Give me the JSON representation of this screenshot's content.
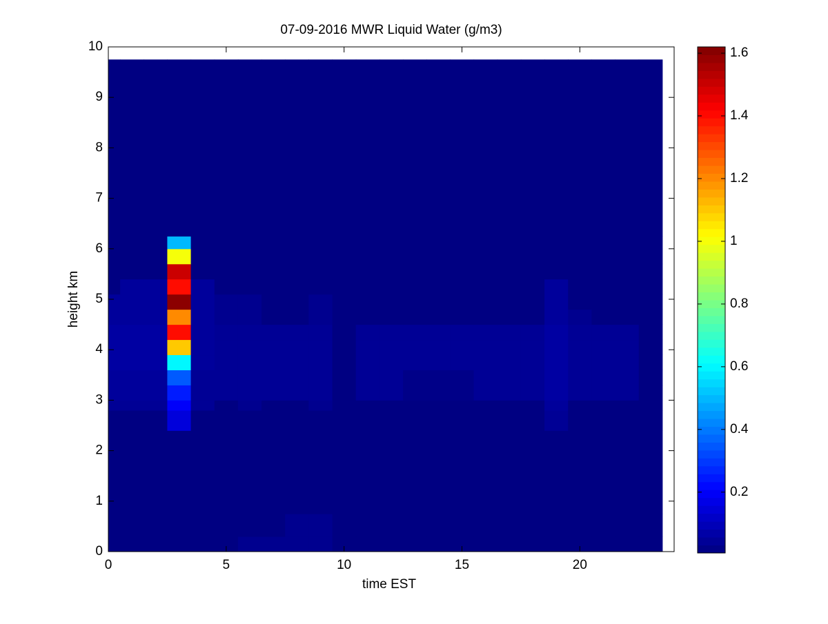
{
  "chart_data": {
    "type": "heatmap",
    "title": "07-09-2016 MWR Liquid Water (g/m3)",
    "xlabel": "time EST",
    "ylabel": "height km",
    "xlim": [
      0,
      24
    ],
    "ylim": [
      0,
      10
    ],
    "xticks": [
      0,
      5,
      10,
      15,
      20
    ],
    "yticks": [
      0,
      1,
      2,
      3,
      4,
      5,
      6,
      7,
      8,
      9,
      10
    ],
    "x_edges": [
      0,
      0.5,
      1.5,
      2.5,
      3.5,
      4.5,
      5.5,
      6.5,
      7.5,
      8.5,
      9.5,
      10.5,
      11.5,
      12.5,
      13.5,
      14.5,
      15.5,
      16.5,
      17.5,
      18.5,
      19.5,
      20.5,
      21.5,
      22.5,
      23.5
    ],
    "y_edges": [
      0,
      0.3,
      0.75,
      2.4,
      2.8,
      3.0,
      3.3,
      3.6,
      3.9,
      4.2,
      4.5,
      4.8,
      5.1,
      5.4,
      5.7,
      6.0,
      6.25,
      9.75
    ],
    "values": [
      [
        0.01,
        0.01,
        0.01,
        0.01,
        0.01,
        0.01,
        0.03,
        0.03,
        0.03,
        0.03,
        0.01,
        0.01,
        0.01,
        0.01,
        0.01,
        0.01,
        0.01,
        0.01,
        0.01,
        0.01,
        0.01,
        0.01,
        0.01,
        0.01
      ],
      [
        0.01,
        0.01,
        0.01,
        0.01,
        0.01,
        0.01,
        0.01,
        0.01,
        0.03,
        0.03,
        0.01,
        0.01,
        0.01,
        0.01,
        0.01,
        0.01,
        0.01,
        0.01,
        0.01,
        0.01,
        0.01,
        0.01,
        0.01,
        0.01
      ],
      [
        0.01,
        0.01,
        0.01,
        0.01,
        0.01,
        0.01,
        0.01,
        0.01,
        0.01,
        0.01,
        0.01,
        0.01,
        0.01,
        0.01,
        0.01,
        0.01,
        0.01,
        0.01,
        0.01,
        0.01,
        0.01,
        0.01,
        0.01,
        0.01
      ],
      [
        0.01,
        0.01,
        0.01,
        0.15,
        0.01,
        0.01,
        0.01,
        0.01,
        0.01,
        0.01,
        0.01,
        0.01,
        0.01,
        0.01,
        0.01,
        0.01,
        0.01,
        0.01,
        0.01,
        0.04,
        0.01,
        0.01,
        0.01,
        0.01
      ],
      [
        0.04,
        0.04,
        0.04,
        0.2,
        0.04,
        0.01,
        0.03,
        0.01,
        0.01,
        0.03,
        0.01,
        0.01,
        0.01,
        0.01,
        0.01,
        0.01,
        0.01,
        0.01,
        0.01,
        0.05,
        0.01,
        0.01,
        0.01,
        0.01
      ],
      [
        0.05,
        0.05,
        0.05,
        0.25,
        0.04,
        0.04,
        0.04,
        0.04,
        0.04,
        0.04,
        0.01,
        0.04,
        0.04,
        0.02,
        0.02,
        0.02,
        0.04,
        0.04,
        0.04,
        0.06,
        0.04,
        0.04,
        0.04,
        0.01
      ],
      [
        0.05,
        0.05,
        0.05,
        0.35,
        0.04,
        0.04,
        0.04,
        0.04,
        0.04,
        0.04,
        0.01,
        0.04,
        0.04,
        0.02,
        0.02,
        0.02,
        0.04,
        0.04,
        0.04,
        0.06,
        0.04,
        0.04,
        0.04,
        0.01
      ],
      [
        0.06,
        0.06,
        0.06,
        0.6,
        0.05,
        0.04,
        0.04,
        0.04,
        0.04,
        0.04,
        0.01,
        0.04,
        0.04,
        0.04,
        0.04,
        0.04,
        0.04,
        0.04,
        0.04,
        0.06,
        0.04,
        0.04,
        0.04,
        0.01
      ],
      [
        0.06,
        0.06,
        0.06,
        1.1,
        0.05,
        0.04,
        0.04,
        0.04,
        0.04,
        0.04,
        0.01,
        0.04,
        0.04,
        0.04,
        0.04,
        0.04,
        0.04,
        0.04,
        0.04,
        0.06,
        0.04,
        0.04,
        0.04,
        0.01
      ],
      [
        0.06,
        0.06,
        0.06,
        1.4,
        0.05,
        0.04,
        0.04,
        0.04,
        0.04,
        0.04,
        0.01,
        0.04,
        0.04,
        0.04,
        0.04,
        0.04,
        0.04,
        0.04,
        0.04,
        0.06,
        0.04,
        0.04,
        0.04,
        0.01
      ],
      [
        0.05,
        0.05,
        0.05,
        1.2,
        0.05,
        0.03,
        0.03,
        0.01,
        0.01,
        0.03,
        0.01,
        0.01,
        0.01,
        0.01,
        0.01,
        0.01,
        0.01,
        0.01,
        0.01,
        0.05,
        0.03,
        0.01,
        0.01,
        0.01
      ],
      [
        0.05,
        0.05,
        0.05,
        1.6,
        0.05,
        0.03,
        0.03,
        0.01,
        0.01,
        0.03,
        0.01,
        0.01,
        0.01,
        0.01,
        0.01,
        0.01,
        0.01,
        0.01,
        0.01,
        0.05,
        0.01,
        0.01,
        0.01,
        0.01
      ],
      [
        0.01,
        0.05,
        0.05,
        1.4,
        0.05,
        0.01,
        0.01,
        0.01,
        0.01,
        0.01,
        0.01,
        0.01,
        0.01,
        0.01,
        0.01,
        0.01,
        0.01,
        0.01,
        0.01,
        0.05,
        0.01,
        0.01,
        0.01,
        0.01
      ],
      [
        0.01,
        0.01,
        0.01,
        1.5,
        0.01,
        0.01,
        0.01,
        0.01,
        0.01,
        0.01,
        0.01,
        0.01,
        0.01,
        0.01,
        0.01,
        0.01,
        0.01,
        0.01,
        0.01,
        0.01,
        0.01,
        0.01,
        0.01,
        0.01
      ],
      [
        0.01,
        0.01,
        0.01,
        1.0,
        0.01,
        0.01,
        0.01,
        0.01,
        0.01,
        0.01,
        0.01,
        0.01,
        0.01,
        0.01,
        0.01,
        0.01,
        0.01,
        0.01,
        0.01,
        0.01,
        0.01,
        0.01,
        0.01,
        0.01
      ],
      [
        0.01,
        0.01,
        0.01,
        0.5,
        0.01,
        0.01,
        0.01,
        0.01,
        0.01,
        0.01,
        0.01,
        0.01,
        0.01,
        0.01,
        0.01,
        0.01,
        0.01,
        0.01,
        0.01,
        0.01,
        0.01,
        0.01,
        0.01,
        0.01
      ],
      [
        0.01,
        0.01,
        0.01,
        0.01,
        0.01,
        0.01,
        0.01,
        0.01,
        0.01,
        0.01,
        0.01,
        0.01,
        0.01,
        0.01,
        0.01,
        0.01,
        0.01,
        0.01,
        0.01,
        0.01,
        0.01,
        0.01,
        0.01,
        0.01
      ]
    ],
    "colormap": "jet",
    "clim": [
      0.006,
      1.62
    ],
    "cticks": [
      0.2,
      0.4,
      0.6,
      0.8,
      1,
      1.2,
      1.4,
      1.6
    ]
  }
}
